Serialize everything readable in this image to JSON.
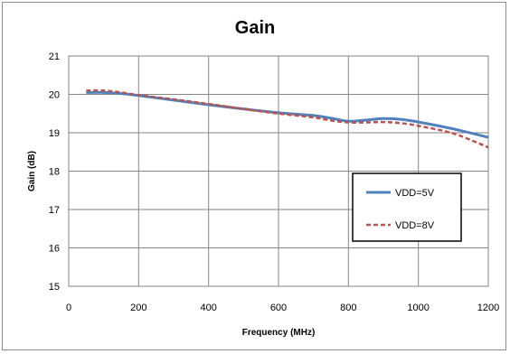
{
  "chart_data": {
    "type": "line",
    "title": "Gain",
    "xlabel": "Frequency (MHz)",
    "ylabel": "Gain (dB)",
    "xlim": [
      0,
      1200
    ],
    "ylim": [
      15,
      21
    ],
    "xticks": [
      0,
      200,
      400,
      600,
      800,
      1000,
      1200
    ],
    "yticks": [
      15,
      16,
      17,
      18,
      19,
      20,
      21
    ],
    "xtick_labels": [
      "0",
      "200",
      "400",
      "600",
      "800",
      "1000",
      "1200"
    ],
    "ytick_labels": [
      "15",
      "16",
      "17",
      "18",
      "19",
      "20",
      "21"
    ],
    "grid": true,
    "legend_position": "right",
    "series": [
      {
        "name": "VDD=5V",
        "color": "#4f81bd",
        "style": "solid",
        "x": [
          50,
          100,
          150,
          200,
          300,
          400,
          500,
          600,
          700,
          750,
          800,
          850,
          900,
          950,
          1000,
          1100,
          1200
        ],
        "y": [
          20.05,
          20.05,
          20.02,
          19.97,
          19.85,
          19.73,
          19.62,
          19.52,
          19.45,
          19.38,
          19.3,
          19.33,
          19.37,
          19.35,
          19.28,
          19.1,
          18.88
        ]
      },
      {
        "name": "VDD=8V",
        "color": "#c0504d",
        "style": "dashed",
        "x": [
          50,
          100,
          150,
          200,
          300,
          400,
          500,
          600,
          700,
          750,
          800,
          850,
          900,
          950,
          1000,
          1100,
          1200
        ],
        "y": [
          20.1,
          20.1,
          20.05,
          19.98,
          19.87,
          19.75,
          19.62,
          19.5,
          19.4,
          19.32,
          19.27,
          19.27,
          19.28,
          19.25,
          19.18,
          18.98,
          18.62
        ]
      }
    ]
  }
}
